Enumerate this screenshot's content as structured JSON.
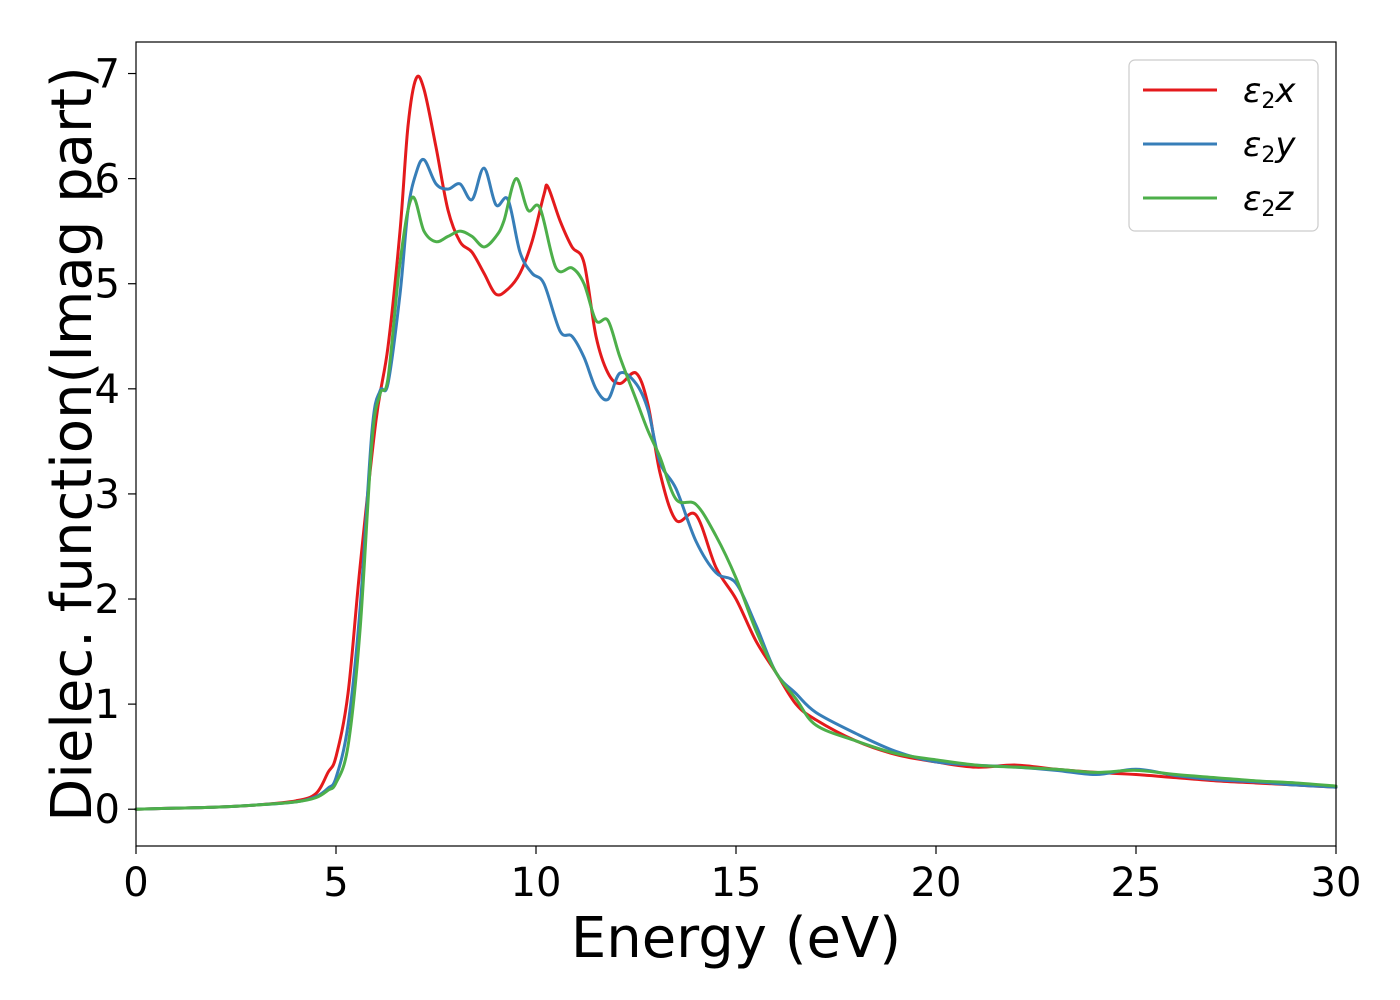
{
  "chart_data": {
    "type": "line",
    "title": "",
    "xlabel": "Energy (eV)",
    "ylabel": "Dielec. function(Imag part)",
    "xlim": [
      0,
      30
    ],
    "ylim": [
      -0.35,
      7.3
    ],
    "xticks": [
      0,
      5,
      10,
      15,
      20,
      25,
      30
    ],
    "yticks": [
      0,
      1,
      2,
      3,
      4,
      5,
      6,
      7
    ],
    "grid": false,
    "legend": {
      "position": "top-right"
    },
    "series": [
      {
        "name": "ε2x",
        "label_base": "ε",
        "label_sub": "2",
        "label_suffix": "x",
        "color": "#e41a1c",
        "x": [
          0,
          1,
          2,
          3,
          4,
          4.5,
          4.8,
          5,
          5.3,
          5.6,
          6,
          6.3,
          6.6,
          6.8,
          7,
          7.2,
          7.5,
          7.8,
          8.1,
          8.4,
          8.7,
          9,
          9.3,
          9.6,
          9.9,
          10.2,
          10.3,
          10.6,
          10.9,
          11.2,
          11.5,
          11.8,
          12.1,
          12.5,
          12.8,
          13.1,
          13.5,
          14,
          14.5,
          15,
          15.5,
          16,
          16.5,
          17,
          18,
          19,
          20,
          21,
          22,
          23,
          24,
          25,
          26,
          27,
          28,
          29,
          30
        ],
        "y": [
          0,
          0.01,
          0.02,
          0.04,
          0.08,
          0.15,
          0.35,
          0.5,
          1.1,
          2.3,
          3.7,
          4.4,
          5.5,
          6.5,
          6.95,
          6.85,
          6.3,
          5.7,
          5.4,
          5.3,
          5.1,
          4.9,
          4.95,
          5.1,
          5.4,
          5.85,
          5.92,
          5.6,
          5.35,
          5.2,
          4.5,
          4.15,
          4.05,
          4.15,
          3.85,
          3.2,
          2.75,
          2.8,
          2.3,
          2.0,
          1.6,
          1.3,
          1.0,
          0.85,
          0.65,
          0.52,
          0.45,
          0.4,
          0.42,
          0.38,
          0.35,
          0.33,
          0.3,
          0.27,
          0.25,
          0.23,
          0.21
        ]
      },
      {
        "name": "ε2y",
        "label_base": "ε",
        "label_sub": "2",
        "label_suffix": "y",
        "color": "#377eb8",
        "x": [
          0,
          1,
          2,
          3,
          4,
          4.5,
          4.8,
          5,
          5.3,
          5.6,
          5.9,
          6.1,
          6.3,
          6.6,
          6.8,
          7,
          7.2,
          7.5,
          7.8,
          8.1,
          8.4,
          8.7,
          9,
          9.3,
          9.6,
          9.9,
          10.2,
          10.6,
          10.9,
          11.2,
          11.5,
          11.8,
          12.1,
          12.5,
          12.8,
          13.1,
          13.5,
          14,
          14.5,
          15,
          15.5,
          16,
          16.5,
          17,
          18,
          19,
          20,
          21,
          22,
          23,
          24,
          25,
          26,
          27,
          28,
          29,
          30
        ],
        "y": [
          0,
          0.01,
          0.02,
          0.04,
          0.07,
          0.12,
          0.2,
          0.3,
          0.8,
          1.9,
          3.6,
          3.98,
          4.05,
          4.9,
          5.7,
          6.05,
          6.18,
          5.95,
          5.9,
          5.95,
          5.8,
          6.1,
          5.75,
          5.8,
          5.3,
          5.1,
          5.0,
          4.55,
          4.5,
          4.3,
          4.0,
          3.9,
          4.15,
          4.05,
          3.8,
          3.3,
          3.05,
          2.55,
          2.25,
          2.15,
          1.75,
          1.3,
          1.1,
          0.92,
          0.72,
          0.55,
          0.45,
          0.42,
          0.4,
          0.37,
          0.33,
          0.38,
          0.32,
          0.28,
          0.26,
          0.23,
          0.21
        ]
      },
      {
        "name": "ε2z",
        "label_base": "ε",
        "label_sub": "2",
        "label_suffix": "z",
        "color": "#4daf4a",
        "x": [
          0,
          1,
          2,
          3,
          4,
          4.5,
          4.8,
          5,
          5.3,
          5.6,
          5.9,
          6.1,
          6.3,
          6.6,
          6.9,
          7.2,
          7.5,
          7.8,
          8.1,
          8.4,
          8.7,
          9,
          9.2,
          9.5,
          9.8,
          10.1,
          10.5,
          10.9,
          11.2,
          11.5,
          11.8,
          12.1,
          12.5,
          12.8,
          13.1,
          13.5,
          14,
          14.5,
          15,
          15.5,
          16,
          16.5,
          17,
          18,
          19,
          20,
          21,
          22,
          23,
          24,
          25,
          26,
          27,
          28,
          29,
          30
        ],
        "y": [
          0,
          0.01,
          0.02,
          0.04,
          0.07,
          0.11,
          0.18,
          0.25,
          0.6,
          1.7,
          3.5,
          3.95,
          4.1,
          5.2,
          5.82,
          5.5,
          5.4,
          5.45,
          5.5,
          5.45,
          5.35,
          5.45,
          5.6,
          6.0,
          5.7,
          5.72,
          5.15,
          5.15,
          5.0,
          4.65,
          4.65,
          4.3,
          3.9,
          3.6,
          3.35,
          2.95,
          2.9,
          2.6,
          2.2,
          1.7,
          1.3,
          1.05,
          0.8,
          0.65,
          0.53,
          0.47,
          0.42,
          0.4,
          0.38,
          0.35,
          0.37,
          0.33,
          0.3,
          0.27,
          0.25,
          0.22
        ]
      }
    ]
  }
}
